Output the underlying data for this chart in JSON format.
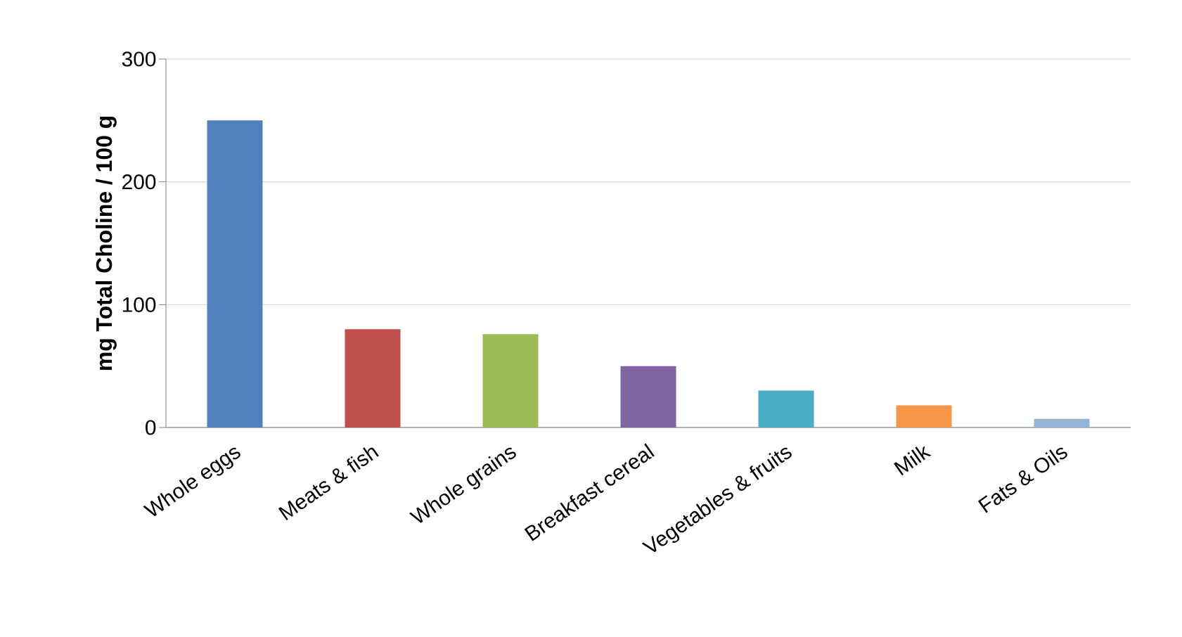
{
  "chart_data": {
    "type": "bar",
    "ylabel": "mg Total Choline / 100 g",
    "categories": [
      "Whole eggs",
      "Meats & fish",
      "Whole grains",
      "Breakfast cereal",
      "Vegetables & fruits",
      "Milk",
      "Fats & Oils"
    ],
    "values": [
      250,
      80,
      76,
      50,
      30,
      18,
      7
    ],
    "colors": [
      "#4f81bd",
      "#c0504d",
      "#9bbb59",
      "#8064a2",
      "#4bacc6",
      "#f79646",
      "#95b3d7"
    ],
    "ylim": [
      0,
      300
    ],
    "yticks": [
      0,
      100,
      200,
      300
    ],
    "grid": "y"
  }
}
